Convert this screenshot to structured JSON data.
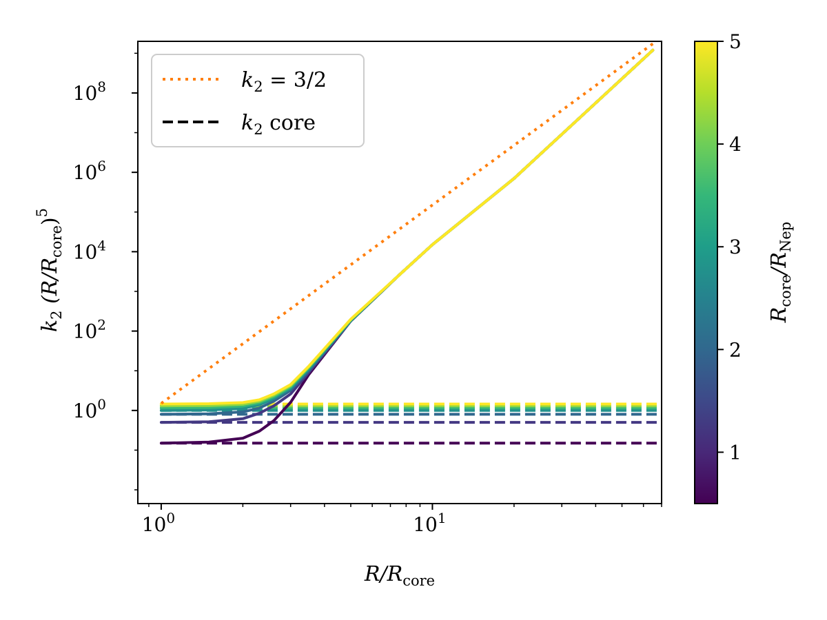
{
  "chart_data": {
    "type": "line",
    "title": "",
    "x_scale": "log",
    "y_scale": "log",
    "xlim": [
      0.82,
      70
    ],
    "ylim": [
      0.0045,
      2000000000
    ],
    "x_ticks": [
      {
        "value": 1,
        "base": "10",
        "exp": "0"
      },
      {
        "value": 10,
        "base": "10",
        "exp": "1"
      }
    ],
    "y_ticks": [
      {
        "value": 1,
        "base": "10",
        "exp": "0"
      },
      {
        "value": 100,
        "base": "10",
        "exp": "2"
      },
      {
        "value": 10000,
        "base": "10",
        "exp": "4"
      },
      {
        "value": 1000000,
        "base": "10",
        "exp": "6"
      },
      {
        "value": 100000000,
        "base": "10",
        "exp": "8"
      }
    ],
    "xlabel": {
      "base": "R/R",
      "sub": "core"
    },
    "ylabel": {
      "k": "k",
      "k_sub": "2",
      "paren_open": " (R/R",
      "paren_sub": "core",
      "paren_close": ")",
      "exp": "5"
    },
    "legend": {
      "placement": "upper-left",
      "entries": [
        {
          "id": "dotted",
          "k": "k",
          "k_sub": "2",
          "rest": " = 3/2",
          "color": "#ff7f0e",
          "style": "dotted"
        },
        {
          "id": "dashed",
          "k": "k",
          "k_sub": "2",
          "rest": " core",
          "color": "#000000",
          "style": "dashed"
        }
      ]
    },
    "reference_line": {
      "name": "k2 = 3/2",
      "x": [
        1,
        65
      ],
      "y": [
        1.5,
        1740000000
      ],
      "color": "#ff7f0e"
    },
    "series": [
      {
        "c": 0.5,
        "color": "#440154",
        "k2core": 0.15,
        "x": [
          1,
          1.5,
          2,
          2.3,
          2.6,
          3,
          3.5,
          5,
          7.5,
          10,
          20,
          65
        ],
        "y": [
          0.15,
          0.16,
          0.2,
          0.3,
          0.55,
          1.6,
          8,
          180,
          2500,
          15000,
          700000,
          1200000000
        ]
      },
      {
        "c": 1.0,
        "color": "#443983",
        "k2core": 0.5,
        "x": [
          1,
          1.5,
          2,
          2.3,
          2.6,
          3,
          3.5,
          5,
          7.5,
          10,
          20,
          65
        ],
        "y": [
          0.5,
          0.52,
          0.62,
          0.85,
          1.3,
          2.6,
          9,
          180,
          2500,
          15000,
          700000,
          1200000000
        ]
      },
      {
        "c": 1.5,
        "color": "#31688e",
        "k2core": 0.8,
        "x": [
          1,
          1.5,
          2,
          2.3,
          2.6,
          3,
          3.5,
          5,
          7.5,
          10,
          20,
          65
        ],
        "y": [
          0.8,
          0.82,
          0.92,
          1.15,
          1.7,
          3.2,
          10,
          180,
          2500,
          15000,
          700000,
          1200000000
        ]
      },
      {
        "c": 2.5,
        "color": "#21918c",
        "k2core": 1.0,
        "x": [
          1,
          1.5,
          2,
          2.3,
          2.6,
          3,
          3.5,
          5,
          7.5,
          10,
          20,
          65
        ],
        "y": [
          1.0,
          1.03,
          1.12,
          1.4,
          2.0,
          3.6,
          11,
          185,
          2500,
          15000,
          700000,
          1200000000
        ]
      },
      {
        "c": 3.5,
        "color": "#35b779",
        "k2core": 1.15,
        "x": [
          1,
          1.5,
          2,
          2.3,
          2.6,
          3,
          3.5,
          5,
          7.5,
          10,
          20,
          65
        ],
        "y": [
          1.15,
          1.18,
          1.28,
          1.55,
          2.2,
          3.9,
          12,
          190,
          2500,
          15000,
          700000,
          1200000000
        ]
      },
      {
        "c": 4.25,
        "color": "#90d743",
        "k2core": 1.3,
        "x": [
          1,
          1.5,
          2,
          2.3,
          2.6,
          3,
          3.5,
          5,
          7.5,
          10,
          20,
          65
        ],
        "y": [
          1.3,
          1.33,
          1.43,
          1.7,
          2.4,
          4.2,
          12.5,
          195,
          2500,
          15000,
          700000,
          1200000000
        ]
      },
      {
        "c": 5.0,
        "color": "#fde725",
        "k2core": 1.45,
        "x": [
          1,
          1.5,
          2,
          2.3,
          2.6,
          3,
          3.5,
          5,
          7.5,
          10,
          20,
          65
        ],
        "y": [
          1.45,
          1.48,
          1.58,
          1.85,
          2.6,
          4.5,
          13,
          200,
          2500,
          15000,
          700000,
          1200000000
        ]
      }
    ],
    "colorbar": {
      "range": [
        0.5,
        5
      ],
      "ticks": [
        "1",
        "2",
        "3",
        "4",
        "5"
      ],
      "tick_values": [
        1,
        2,
        3,
        4,
        5
      ],
      "label": {
        "base": "R",
        "sub1": "core",
        "mid": "/R",
        "sub2": "Nep"
      },
      "colormap": [
        "#440154",
        "#482878",
        "#3e4989",
        "#31688e",
        "#26828e",
        "#1f9e89",
        "#35b779",
        "#6ece58",
        "#b5de2b",
        "#fde725"
      ]
    }
  }
}
